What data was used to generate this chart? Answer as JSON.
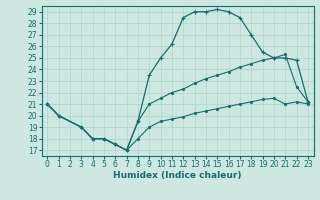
{
  "xlabel": "Humidex (Indice chaleur)",
  "xlim": [
    -0.5,
    23.5
  ],
  "ylim": [
    16.5,
    29.5
  ],
  "yticks": [
    17,
    18,
    19,
    20,
    21,
    22,
    23,
    24,
    25,
    26,
    27,
    28,
    29
  ],
  "xticks": [
    0,
    1,
    2,
    3,
    4,
    5,
    6,
    7,
    8,
    9,
    10,
    11,
    12,
    13,
    14,
    15,
    16,
    17,
    18,
    19,
    20,
    21,
    22,
    23
  ],
  "bg_color": "#cce8e0",
  "line_color": "#1a6b6b",
  "grid_color": "#b0d8d0",
  "line1_x": [
    0,
    1,
    3,
    4,
    5,
    6,
    7,
    8,
    9,
    10,
    11,
    12,
    13,
    14,
    15,
    16,
    17,
    18,
    19,
    20,
    21,
    22,
    23
  ],
  "line1_y": [
    21.0,
    20.0,
    19.0,
    18.0,
    18.0,
    17.5,
    17.0,
    18.0,
    19.0,
    19.5,
    19.7,
    19.9,
    20.2,
    20.4,
    20.6,
    20.8,
    21.0,
    21.2,
    21.4,
    21.5,
    21.0,
    21.2,
    21.0
  ],
  "line2_x": [
    0,
    1,
    3,
    4,
    5,
    6,
    7,
    8,
    9,
    10,
    11,
    12,
    13,
    14,
    15,
    16,
    17,
    18,
    19,
    20,
    21,
    22,
    23
  ],
  "line2_y": [
    21.0,
    20.0,
    19.0,
    18.0,
    18.0,
    17.5,
    17.0,
    19.5,
    21.0,
    21.5,
    22.0,
    22.3,
    22.8,
    23.2,
    23.5,
    23.8,
    24.2,
    24.5,
    24.8,
    25.0,
    25.3,
    22.5,
    21.2
  ],
  "line3_x": [
    0,
    1,
    3,
    4,
    5,
    6,
    7,
    8,
    9,
    10,
    11,
    12,
    13,
    14,
    15,
    16,
    17,
    18,
    19,
    20,
    21,
    22,
    23
  ],
  "line3_y": [
    21.0,
    20.0,
    19.0,
    18.0,
    18.0,
    17.5,
    17.0,
    19.5,
    23.5,
    25.0,
    26.2,
    28.5,
    29.0,
    29.0,
    29.2,
    29.0,
    28.5,
    27.0,
    25.5,
    25.0,
    25.0,
    24.8,
    21.2
  ],
  "tick_fontsize": 5.5,
  "xlabel_fontsize": 6.5
}
